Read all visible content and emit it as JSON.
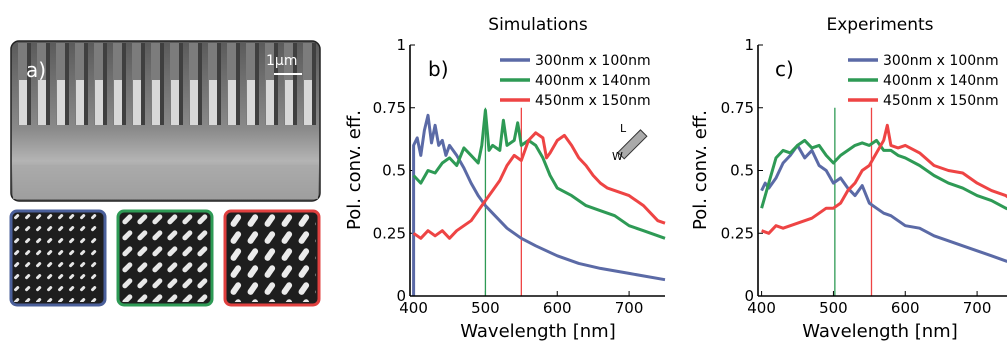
{
  "panel_a": {
    "label": "a)",
    "scale_bar": "1μm",
    "thumbnail_frame_colors": [
      "#4a5f9a",
      "#2e9a55",
      "#e0403f"
    ]
  },
  "chart_data": [
    {
      "type": "line",
      "panel_label": "b)",
      "title": "Simulations",
      "xlabel": "Wavelength [nm]",
      "ylabel": "Pol. conv. eff.",
      "xlim": [
        395,
        750
      ],
      "ylim": [
        0,
        1
      ],
      "xticks": [
        400,
        500,
        600,
        700
      ],
      "ytick_labels": [
        "0",
        "0.25",
        "0.5",
        "0.75",
        "1"
      ],
      "legend_placement": "top-right",
      "inset": {
        "label_l": "L",
        "label_w": "W"
      },
      "series": [
        {
          "name": "300nm x 100nm",
          "color": "#5b6aa6",
          "x": [
            400,
            405,
            410,
            415,
            420,
            425,
            430,
            435,
            440,
            445,
            450,
            460,
            470,
            480,
            490,
            500,
            510,
            520,
            530,
            540,
            550,
            570,
            600,
            630,
            660,
            700,
            750
          ],
          "y": [
            0.6,
            0.63,
            0.56,
            0.66,
            0.72,
            0.61,
            0.68,
            0.6,
            0.62,
            0.56,
            0.6,
            0.56,
            0.51,
            0.45,
            0.4,
            0.36,
            0.33,
            0.3,
            0.27,
            0.25,
            0.23,
            0.2,
            0.16,
            0.13,
            0.11,
            0.09,
            0.065
          ]
        },
        {
          "name": "400nm x 140nm",
          "color": "#2e9a55",
          "x": [
            400,
            410,
            420,
            430,
            440,
            450,
            460,
            470,
            480,
            490,
            495,
            500,
            505,
            510,
            520,
            525,
            530,
            540,
            545,
            550,
            560,
            570,
            580,
            590,
            600,
            620,
            640,
            660,
            680,
            700,
            720,
            750
          ],
          "y": [
            0.48,
            0.45,
            0.5,
            0.49,
            0.53,
            0.55,
            0.52,
            0.59,
            0.56,
            0.53,
            0.6,
            0.74,
            0.58,
            0.6,
            0.58,
            0.7,
            0.6,
            0.62,
            0.69,
            0.6,
            0.62,
            0.6,
            0.55,
            0.48,
            0.43,
            0.4,
            0.36,
            0.34,
            0.32,
            0.28,
            0.26,
            0.23
          ]
        },
        {
          "name": "450nm x 150nm",
          "color": "#ee4444",
          "x": [
            400,
            410,
            420,
            430,
            440,
            450,
            460,
            470,
            480,
            490,
            500,
            510,
            520,
            530,
            540,
            550,
            560,
            570,
            580,
            585,
            590,
            600,
            610,
            620,
            630,
            640,
            650,
            660,
            670,
            680,
            700,
            720,
            740,
            750
          ],
          "y": [
            0.25,
            0.23,
            0.26,
            0.24,
            0.26,
            0.23,
            0.26,
            0.28,
            0.3,
            0.34,
            0.38,
            0.42,
            0.46,
            0.52,
            0.56,
            0.54,
            0.62,
            0.65,
            0.63,
            0.55,
            0.57,
            0.62,
            0.64,
            0.6,
            0.55,
            0.52,
            0.48,
            0.45,
            0.43,
            0.42,
            0.4,
            0.36,
            0.3,
            0.29
          ]
        }
      ],
      "markers": [
        {
          "x": 500,
          "color": "#2e9a55"
        },
        {
          "x": 550,
          "color": "#ee4444"
        }
      ]
    },
    {
      "type": "line",
      "panel_label": "c)",
      "title": "Experiments",
      "xlabel": "Wavelength [nm]",
      "ylabel": "Pol. conv. eff.",
      "xlim": [
        395,
        750
      ],
      "ylim": [
        0,
        1
      ],
      "xticks": [
        400,
        500,
        600,
        700
      ],
      "ytick_labels": [
        "0",
        "0.25",
        "0.5",
        "0.75",
        "1"
      ],
      "legend_placement": "top-right",
      "series": [
        {
          "name": "300nm x 100nm",
          "color": "#5b6aa6",
          "x": [
            400,
            405,
            410,
            420,
            430,
            440,
            450,
            460,
            470,
            480,
            490,
            500,
            510,
            520,
            530,
            540,
            550,
            560,
            570,
            580,
            590,
            600,
            620,
            640,
            660,
            680,
            700,
            720,
            740,
            750
          ],
          "y": [
            0.42,
            0.45,
            0.43,
            0.47,
            0.53,
            0.56,
            0.6,
            0.55,
            0.58,
            0.52,
            0.5,
            0.45,
            0.47,
            0.43,
            0.4,
            0.44,
            0.37,
            0.35,
            0.33,
            0.32,
            0.3,
            0.28,
            0.27,
            0.24,
            0.22,
            0.2,
            0.18,
            0.16,
            0.14,
            0.13
          ]
        },
        {
          "name": "400nm x 140nm",
          "color": "#2e9a55",
          "x": [
            400,
            410,
            420,
            430,
            440,
            450,
            460,
            470,
            480,
            490,
            500,
            510,
            520,
            530,
            540,
            550,
            560,
            570,
            580,
            590,
            600,
            620,
            640,
            660,
            680,
            700,
            720,
            740,
            750
          ],
          "y": [
            0.35,
            0.45,
            0.55,
            0.58,
            0.57,
            0.6,
            0.62,
            0.59,
            0.6,
            0.56,
            0.53,
            0.56,
            0.58,
            0.6,
            0.61,
            0.6,
            0.62,
            0.58,
            0.58,
            0.56,
            0.55,
            0.52,
            0.48,
            0.45,
            0.43,
            0.4,
            0.38,
            0.35,
            0.34
          ]
        },
        {
          "name": "450nm x 150nm",
          "color": "#ee4444",
          "x": [
            400,
            410,
            420,
            430,
            440,
            450,
            460,
            470,
            480,
            490,
            500,
            510,
            520,
            530,
            540,
            550,
            560,
            570,
            575,
            580,
            590,
            600,
            620,
            640,
            660,
            680,
            700,
            720,
            740,
            750
          ],
          "y": [
            0.26,
            0.25,
            0.28,
            0.27,
            0.28,
            0.29,
            0.3,
            0.31,
            0.33,
            0.35,
            0.35,
            0.37,
            0.42,
            0.45,
            0.5,
            0.52,
            0.57,
            0.62,
            0.68,
            0.6,
            0.59,
            0.6,
            0.57,
            0.52,
            0.5,
            0.49,
            0.45,
            0.42,
            0.4,
            0.38
          ]
        }
      ],
      "markers": [
        {
          "x": 502,
          "color": "#2e9a55"
        },
        {
          "x": 553,
          "color": "#ee4444"
        }
      ]
    }
  ]
}
